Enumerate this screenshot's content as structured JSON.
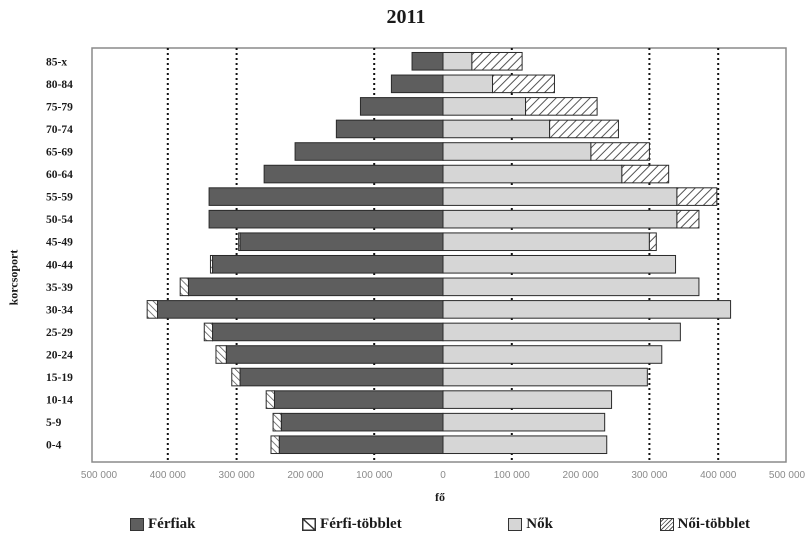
{
  "chart_data": {
    "type": "bar",
    "orientation": "horizontal-population-pyramid",
    "title": "2011",
    "xlabel": "fő",
    "ylabel": "korcsoport",
    "xlim": [
      -500000,
      500000
    ],
    "xticks": [
      "500 000",
      "400 000",
      "300 000",
      "200 000",
      "100 000",
      "0",
      "100 000",
      "200 000",
      "300 000",
      "400 000",
      "500 000"
    ],
    "grid": "dotted vertical lines at ±100 000, ±300 000, ±400 000",
    "legend_position": "bottom",
    "categories": [
      "0-4",
      "5-9",
      "10-14",
      "15-19",
      "20-24",
      "25-29",
      "30-34",
      "35-39",
      "40-44",
      "45-49",
      "50-54",
      "55-59",
      "60-64",
      "65-69",
      "70-74",
      "75-79",
      "80-84",
      "85-x"
    ],
    "category_labels": [
      "0-4",
      "5-9",
      "10-14",
      "15-19",
      "20-24",
      "25-29",
      "30-34",
      "35-39",
      "40-44",
      "45-49",
      "50-54",
      "55-59",
      "60-64",
      "65-69",
      "70-74",
      "75-79",
      "80-84",
      "85-x"
    ],
    "series": [
      {
        "name": "Férfiak",
        "values": [
          -238000,
          -235000,
          -245000,
          -295000,
          -315000,
          -335000,
          -415000,
          -370000,
          -335000,
          -295000,
          -340000,
          -340000,
          -260000,
          -215000,
          -155000,
          -120000,
          -75000,
          -45000
        ]
      },
      {
        "name": "Férfi-többlet",
        "values": [
          -12000,
          -12000,
          -12000,
          -12000,
          -15000,
          -12000,
          -15000,
          -12000,
          -3000,
          -2000,
          0,
          0,
          0,
          0,
          0,
          0,
          0,
          0
        ]
      },
      {
        "name": "Nők",
        "values": [
          238000,
          235000,
          245000,
          297000,
          318000,
          345000,
          418000,
          372000,
          338000,
          300000,
          340000,
          340000,
          260000,
          215000,
          155000,
          120000,
          72000,
          42000
        ]
      },
      {
        "name": "Női-többlet",
        "values": [
          0,
          0,
          0,
          0,
          0,
          0,
          0,
          0,
          0,
          10000,
          32000,
          58000,
          68000,
          85000,
          100000,
          104000,
          90000,
          73000
        ]
      }
    ],
    "colors": {
      "men": "#5e5e5e",
      "women": "#d6d6d6",
      "outline": "#2a2a2a",
      "hatch": "#555555"
    }
  },
  "legend": {
    "men": "Férfiak",
    "men_excess": "Férfi-többlet",
    "women": "Nők",
    "women_excess": "Női-többlet"
  }
}
